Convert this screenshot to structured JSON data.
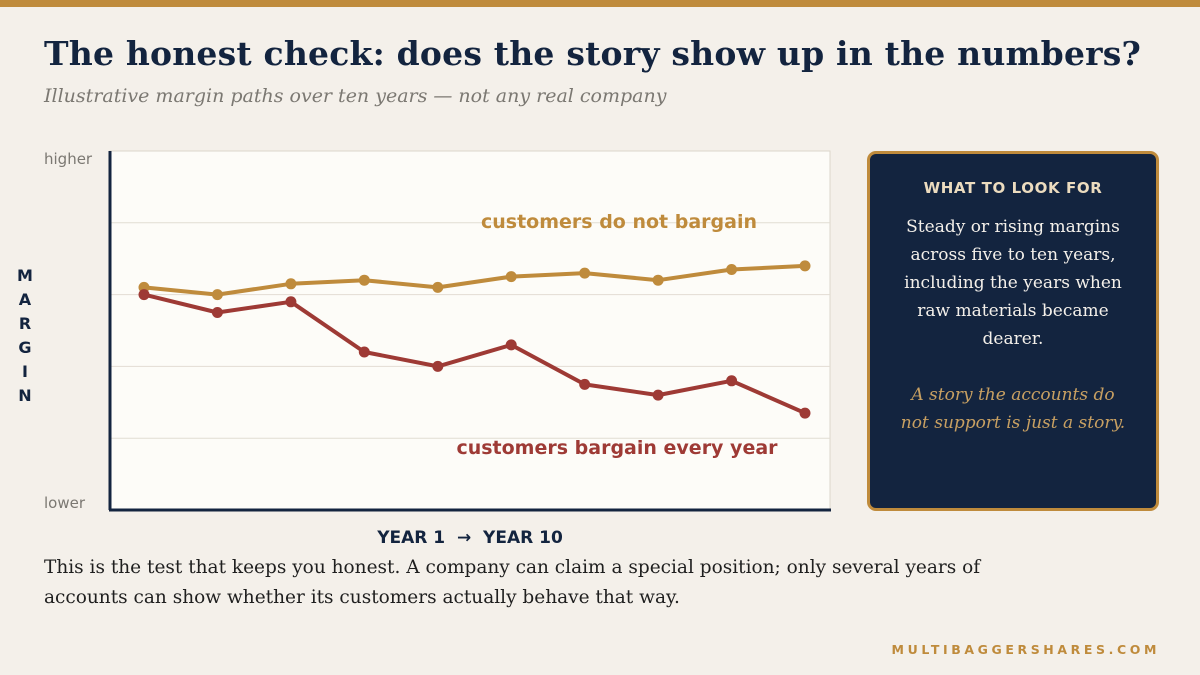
{
  "slide": {
    "title": "The honest check: does the story show up in the numbers?",
    "subtitle": "Illustrative margin paths over ten years — not any real company",
    "caption": "This is the test that keeps you honest. A company can claim a special position; only several years of accounts can show whether its customers actually behave that way.",
    "brand": "MULTIBAGGERSHARES.COM"
  },
  "callout": {
    "heading": "WHAT TO LOOK FOR",
    "body": "Steady or rising margins across five to ten years, including the years when raw materials became dearer.",
    "note": "A story the accounts do not support is just a story."
  },
  "colors": {
    "accent_gold": "#bf8b3c",
    "series_red": "#9e3a35",
    "navy": "#13243f",
    "background": "#f4f0ea",
    "plot_background": "#fdfcf8"
  },
  "chart_data": {
    "type": "line",
    "title": "",
    "xlabel": "YEAR 1  →  YEAR 10",
    "ylabel": "MARGIN",
    "y_tick_labels": {
      "top": "higher",
      "bottom": "lower"
    },
    "ylim": [
      0,
      100
    ],
    "grid": true,
    "x": [
      1,
      2,
      3,
      4,
      5,
      6,
      7,
      8,
      9,
      10
    ],
    "series": [
      {
        "name": "customers do not bargain",
        "color": "#bf8b3c",
        "values": [
          62,
          60,
          63,
          64,
          62,
          65,
          66,
          64,
          67,
          68
        ]
      },
      {
        "name": "customers bargain every year",
        "color": "#9e3a35",
        "values": [
          60,
          55,
          58,
          44,
          40,
          46,
          35,
          32,
          36,
          27
        ]
      }
    ]
  }
}
